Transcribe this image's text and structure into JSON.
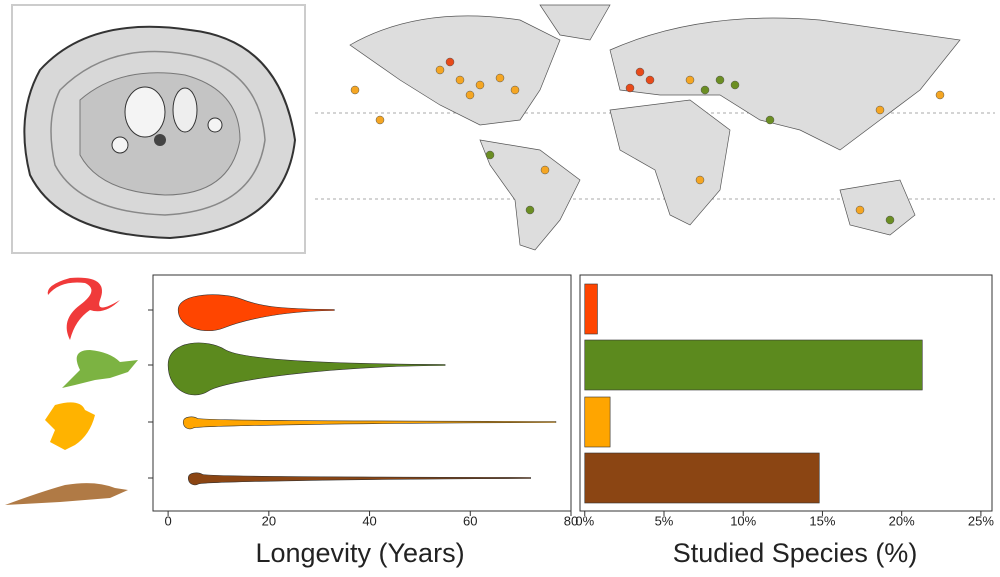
{
  "chart_data": [
    {
      "type": "violin",
      "x_label": "Longevity (Years)",
      "categories": [
        null,
        null,
        null,
        null
      ],
      "min": [
        2,
        0,
        3,
        4
      ],
      "mode": [
        11,
        8,
        5,
        6
      ],
      "max": [
        33,
        55,
        77,
        72
      ],
      "colors": [
        "#ff4500",
        "#5c8a1e",
        "#ffa500",
        "#8b4513"
      ],
      "xlim": [
        -3,
        80
      ],
      "xticks": [
        0,
        20,
        40,
        60,
        80
      ]
    },
    {
      "type": "hbar",
      "x_label": "Studied Species (%)",
      "categories": [
        null,
        null,
        null,
        null
      ],
      "values": [
        0.8,
        21.3,
        1.6,
        14.8
      ],
      "colors": [
        "#ff4500",
        "#5c8a1e",
        "#ffa500",
        "#8b4513"
      ],
      "xlim": [
        -0.3,
        25.7
      ],
      "xticks": [
        {
          "value": 0,
          "label": "0%"
        },
        {
          "value": 5,
          "label": "5%"
        },
        {
          "value": 10,
          "label": "10%"
        },
        {
          "value": 15,
          "label": "15%"
        },
        {
          "value": 20,
          "label": "20%"
        },
        {
          "value": 25,
          "label": "25%"
        }
      ]
    }
  ]
}
